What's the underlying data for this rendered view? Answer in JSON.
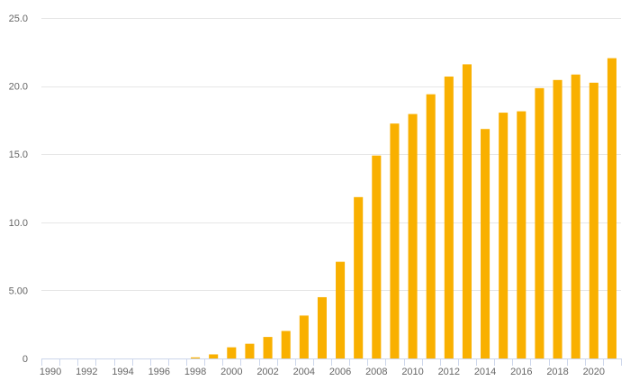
{
  "chart_data": {
    "type": "bar",
    "title": "",
    "xlabel": "",
    "ylabel": "",
    "ylim": [
      0,
      25
    ],
    "yticks": [
      {
        "value": 0,
        "label": "0"
      },
      {
        "value": 5,
        "label": "5.00"
      },
      {
        "value": 10,
        "label": "10.0"
      },
      {
        "value": 15,
        "label": "15.0"
      },
      {
        "value": 20,
        "label": "20.0"
      },
      {
        "value": 25,
        "label": "25.0"
      }
    ],
    "grid": true,
    "legend": "none",
    "bar_color": "#f9b000",
    "categories": [
      1990,
      1991,
      1992,
      1993,
      1994,
      1995,
      1996,
      1997,
      1998,
      1999,
      2000,
      2001,
      2002,
      2003,
      2004,
      2005,
      2006,
      2007,
      2008,
      2009,
      2010,
      2011,
      2012,
      2013,
      2014,
      2015,
      2016,
      2017,
      2018,
      2019,
      2020,
      2021
    ],
    "x_tick_labels": [
      "1990",
      "1992",
      "1994",
      "1996",
      "1998",
      "2000",
      "2002",
      "2004",
      "2006",
      "2008",
      "2010",
      "2012",
      "2014",
      "2016",
      "2018",
      "2020"
    ],
    "values": [
      0,
      0,
      0,
      0,
      0,
      0,
      0,
      0,
      0.08,
      0.3,
      0.82,
      1.08,
      1.58,
      2.02,
      3.15,
      4.5,
      7.1,
      11.85,
      14.9,
      17.25,
      17.95,
      19.4,
      20.7,
      21.6,
      16.85,
      18.05,
      18.15,
      19.85,
      20.45,
      20.85,
      20.25,
      22.05
    ]
  }
}
